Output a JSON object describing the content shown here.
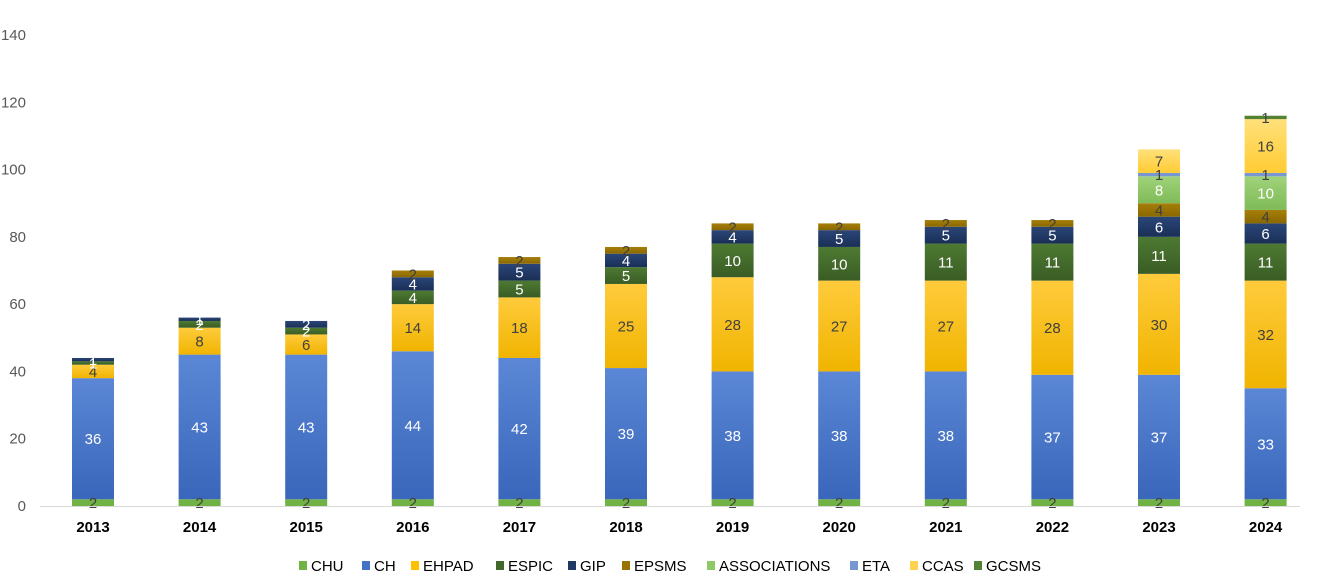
{
  "chart_data": {
    "type": "bar",
    "stacked": true,
    "title": "",
    "xlabel": "",
    "ylabel": "",
    "ylim": [
      0,
      140
    ],
    "yticks": [
      "0",
      "20",
      "40",
      "60",
      "80",
      "100",
      "120",
      "140"
    ],
    "grid": false,
    "legend_position": "bottom",
    "categories": [
      "2013",
      "2014",
      "2015",
      "2016",
      "2017",
      "2018",
      "2019",
      "2020",
      "2021",
      "2022",
      "2023",
      "2024"
    ],
    "series": [
      {
        "name": "CHU",
        "color": "#70b244",
        "label_color": "#404040",
        "values": [
          2,
          2,
          2,
          2,
          2,
          2,
          2,
          2,
          2,
          2,
          2,
          2
        ]
      },
      {
        "name": "CH",
        "color": "#4472c4",
        "label_color": "#ffffff",
        "values": [
          36,
          43,
          43,
          44,
          42,
          39,
          38,
          38,
          38,
          37,
          37,
          33
        ]
      },
      {
        "name": "EHPAD",
        "color": "#ffc000",
        "label_color": "#404040",
        "values": [
          4,
          8,
          6,
          14,
          18,
          25,
          28,
          27,
          27,
          28,
          30,
          32
        ]
      },
      {
        "name": "ESPIC",
        "color": "#43682b",
        "label_color": "#ffffff",
        "values": [
          1,
          2,
          2,
          4,
          5,
          5,
          10,
          10,
          11,
          11,
          11,
          11
        ]
      },
      {
        "name": "GIP",
        "color": "#203864",
        "label_color": "#ffffff",
        "values": [
          1,
          1,
          2,
          4,
          5,
          4,
          4,
          5,
          5,
          5,
          6,
          6
        ]
      },
      {
        "name": "EPSMS",
        "color": "#997300",
        "label_color": "#404040",
        "values": [
          0,
          0,
          0,
          2,
          2,
          2,
          2,
          2,
          2,
          2,
          4,
          4
        ]
      },
      {
        "name": "ASSOCIATIONS",
        "color": "#8fc866",
        "label_color": "#ffffff",
        "values": [
          0,
          0,
          0,
          0,
          0,
          0,
          0,
          0,
          0,
          0,
          8,
          10
        ]
      },
      {
        "name": "ETA",
        "color": "#7896d2",
        "label_color": "#404040",
        "values": [
          0,
          0,
          0,
          0,
          0,
          0,
          0,
          0,
          0,
          0,
          1,
          1
        ]
      },
      {
        "name": "CCAS",
        "color": "#ffd34d",
        "label_color": "#404040",
        "values": [
          0,
          0,
          0,
          0,
          0,
          0,
          0,
          0,
          0,
          0,
          7,
          16
        ]
      },
      {
        "name": "GCSMS",
        "color": "#548235",
        "label_color": "#404040",
        "values": [
          0,
          0,
          0,
          0,
          0,
          0,
          0,
          0,
          0,
          0,
          0,
          1
        ]
      }
    ]
  }
}
